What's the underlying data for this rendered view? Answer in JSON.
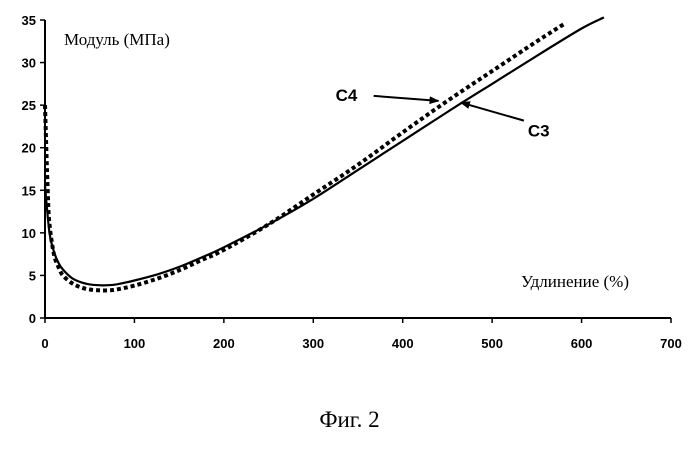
{
  "figure": {
    "caption": "Фиг. 2"
  },
  "chart_data": {
    "type": "line",
    "xlabel": "Удлинение (%)",
    "ylabel": "Модуль (МПа)",
    "xlim": [
      0,
      700
    ],
    "ylim": [
      0,
      35
    ],
    "x_ticks": [
      0,
      100,
      200,
      300,
      400,
      500,
      600,
      700
    ],
    "y_ticks": [
      0,
      5,
      10,
      15,
      20,
      25,
      30,
      35
    ],
    "grid": false,
    "series": [
      {
        "name": "C3",
        "style": "solid",
        "x": [
          0,
          5,
          10,
          15,
          20,
          30,
          40,
          50,
          60,
          70,
          80,
          100,
          125,
          150,
          175,
          200,
          250,
          300,
          350,
          400,
          450,
          500,
          550,
          600,
          625
        ],
        "y": [
          15.5,
          10.0,
          7.8,
          6.5,
          5.7,
          4.7,
          4.2,
          3.95,
          3.85,
          3.85,
          3.95,
          4.4,
          5.1,
          6.0,
          7.1,
          8.3,
          11.0,
          14.0,
          17.4,
          20.8,
          24.2,
          27.5,
          30.8,
          34.0,
          35.3
        ]
      },
      {
        "name": "C4",
        "style": "dotted",
        "x": [
          0,
          3,
          5,
          10,
          15,
          20,
          30,
          40,
          50,
          60,
          70,
          80,
          100,
          125,
          150,
          175,
          200,
          250,
          300,
          350,
          400,
          450,
          500,
          550,
          580
        ],
        "y": [
          25.0,
          15.0,
          11.0,
          7.5,
          6.0,
          5.0,
          4.1,
          3.6,
          3.35,
          3.25,
          3.25,
          3.35,
          3.8,
          4.6,
          5.6,
          6.8,
          8.0,
          11.0,
          14.5,
          18.0,
          21.8,
          25.5,
          29.0,
          32.5,
          34.5
        ]
      }
    ],
    "annotations": [
      {
        "text": "C4",
        "points_to": "C4",
        "target": [
          440,
          25.5
        ],
        "text_at": [
          325,
          25.5
        ]
      },
      {
        "text": "C3",
        "points_to": "C3",
        "target": [
          465,
          25.3
        ],
        "text_at": [
          540,
          21.3
        ]
      }
    ]
  }
}
